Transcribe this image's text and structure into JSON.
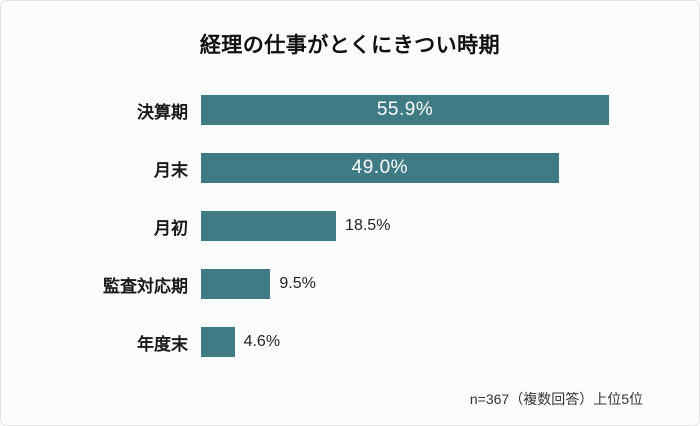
{
  "chart_data": {
    "type": "bar",
    "orientation": "horizontal",
    "title": "経理の仕事がとくにきつい時期",
    "categories": [
      "決算期",
      "月末",
      "月初",
      "監査対応期",
      "年度末"
    ],
    "values": [
      55.9,
      49.0,
      18.5,
      9.5,
      4.6
    ],
    "value_labels": [
      "55.9%",
      "49.0%",
      "18.5%",
      "9.5%",
      "4.6%"
    ],
    "xlabel": "",
    "ylabel": "",
    "xlim": [
      0,
      60
    ],
    "grid": false,
    "legend": false,
    "bar_color": "#3e7b84",
    "inside_label_min": 30,
    "note": "n=367（複数回答）上位5位"
  }
}
